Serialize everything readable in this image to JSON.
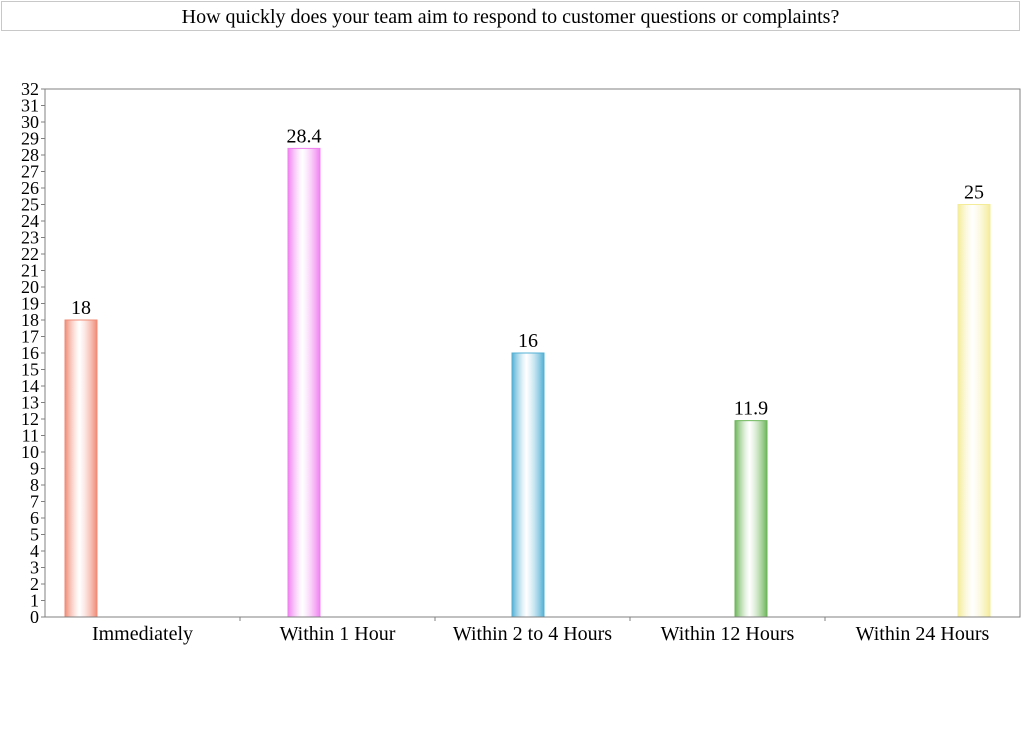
{
  "chart_data": {
    "type": "bar",
    "title": "How quickly does your team aim to respond to customer questions or complaints?",
    "categories": [
      "Immediately",
      "Within 1 Hour",
      "Within 2 to 4 Hours",
      "Within 12 Hours",
      "Within 24 Hours"
    ],
    "values": [
      18,
      28.4,
      16,
      11.9,
      25
    ],
    "value_labels": [
      "18",
      "28.4",
      "16",
      "11.9",
      "25"
    ],
    "colors": [
      "#f08b76",
      "#f080f0",
      "#52b0d4",
      "#6db55a",
      "#f4ec98"
    ],
    "ylim": [
      0,
      32
    ],
    "yticks": [
      "0",
      "1",
      "2",
      "3",
      "4",
      "5",
      "6",
      "7",
      "8",
      "9",
      "10",
      "11",
      "12",
      "13",
      "14",
      "15",
      "16",
      "17",
      "18",
      "19",
      "20",
      "21",
      "22",
      "23",
      "24",
      "25",
      "26",
      "27",
      "28",
      "29",
      "30",
      "31",
      "32"
    ],
    "grid": false,
    "legend": "none"
  }
}
